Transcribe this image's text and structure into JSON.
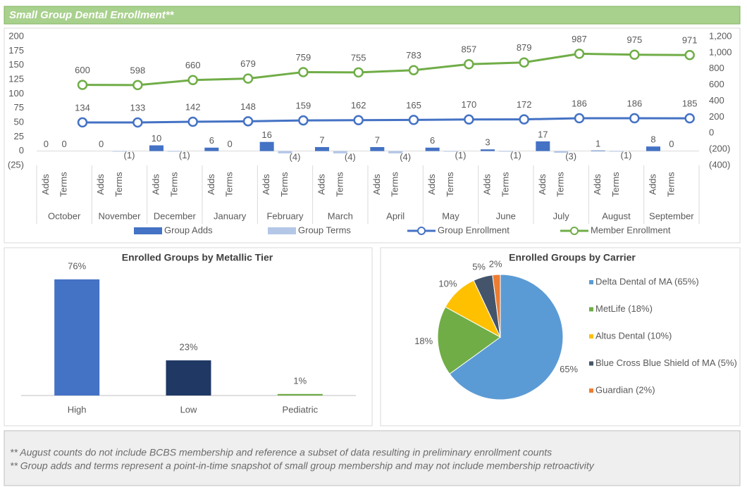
{
  "title": "Small Group Dental Enrollment**",
  "notes": [
    "** August counts do not include BCBS membership and reference a subset of data resulting in preliminary enrollment counts",
    "** Group adds and terms represent a point-in-time snapshot of small group membership and may not include membership retroactivity"
  ],
  "chart_data": [
    {
      "type": "combo",
      "categories": [
        "October",
        "November",
        "December",
        "January",
        "February",
        "March",
        "April",
        "May",
        "June",
        "July",
        "August",
        "September"
      ],
      "subcategories": [
        "Adds",
        "Terms"
      ],
      "ylim": [
        -25,
        200
      ],
      "yticks": [
        {
          "value": -25,
          "label": "(25)"
        },
        0,
        25,
        50,
        75,
        100,
        125,
        150,
        175,
        200
      ],
      "y2lim": [
        -400,
        1200
      ],
      "y2ticks": [
        {
          "value": -400,
          "label": "(400)"
        },
        {
          "value": -200,
          "label": "(200)"
        },
        0,
        200,
        400,
        600,
        800,
        {
          "value": 1000,
          "label": "1,000"
        },
        {
          "value": 1200,
          "label": "1,200"
        }
      ],
      "legend": "bottom",
      "series": [
        {
          "name": "Group Adds",
          "type": "bar",
          "color": "#4472c4",
          "values": [
            0,
            0,
            10,
            6,
            16,
            7,
            7,
            6,
            3,
            17,
            1,
            8
          ]
        },
        {
          "name": "Group Terms",
          "type": "bar",
          "color": "#b4c7e7",
          "values": [
            0,
            -1,
            -1,
            0,
            -4,
            -4,
            -4,
            -1,
            -1,
            -3,
            -1,
            0
          ],
          "value_labels": [
            "0",
            "(1)",
            "(1)",
            "0",
            "(4)",
            "(4)",
            "(4)",
            "(1)",
            "(1)",
            "(3)",
            "(1)",
            "0"
          ]
        },
        {
          "name": "Group Enrollment",
          "type": "line",
          "axis": "y2",
          "color": "#4472c4",
          "values": [
            134,
            133,
            142,
            148,
            159,
            162,
            165,
            170,
            172,
            186,
            186,
            185
          ]
        },
        {
          "name": "Member Enrollment",
          "type": "line",
          "axis": "y2",
          "color": "#70ad47",
          "values": [
            600,
            598,
            660,
            679,
            759,
            755,
            783,
            857,
            879,
            987,
            975,
            971
          ]
        }
      ]
    },
    {
      "type": "bar",
      "title": "Enrolled Groups by Metallic Tier",
      "categories": [
        "High",
        "Low",
        "Pediatric"
      ],
      "values": [
        76,
        23,
        1
      ],
      "value_labels": [
        "76%",
        "23%",
        "1%"
      ],
      "colors": [
        "#4472c4",
        "#1f3864",
        "#70ad47"
      ]
    },
    {
      "type": "pie",
      "title": "Enrolled Groups by Carrier",
      "categories": [
        "Delta Dental of MA (65%)",
        "MetLife (18%)",
        "Altus Dental (10%)",
        "Blue Cross Blue Shield of MA (5%)",
        "Guardian (2%)"
      ],
      "values": [
        65,
        18,
        10,
        5,
        2
      ],
      "value_labels": [
        "65%",
        "18%",
        "10%",
        "5%",
        "2%"
      ],
      "colors": [
        "#5b9bd5",
        "#70ad47",
        "#ffc000",
        "#44546a",
        "#ed7d31"
      ],
      "legend": "right"
    }
  ]
}
